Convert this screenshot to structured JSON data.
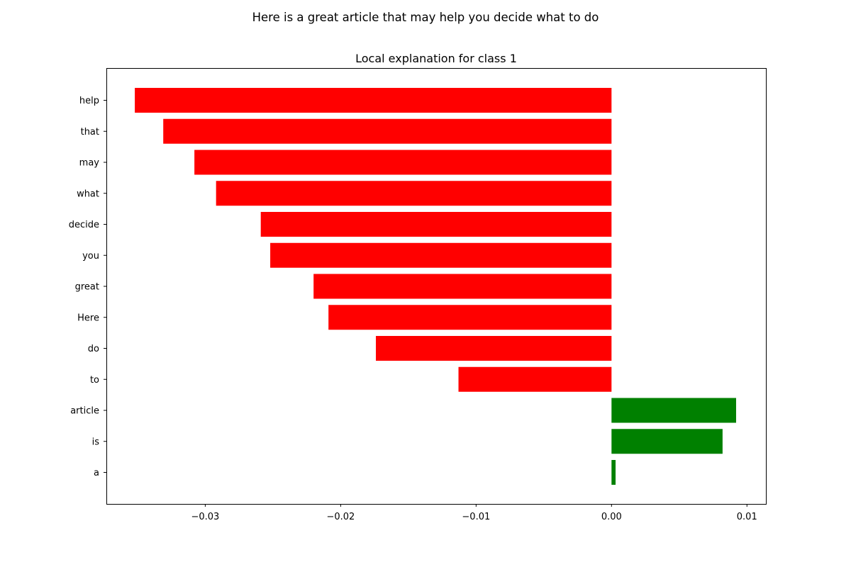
{
  "figure": {
    "suptitle": "Here is a great article that may help you decide what to do"
  },
  "chart_data": {
    "type": "bar",
    "orientation": "horizontal",
    "title": "Local explanation for class 1",
    "xlabel": "",
    "ylabel": "",
    "categories": [
      "help",
      "that",
      "may",
      "what",
      "decide",
      "you",
      "great",
      "Here",
      "do",
      "to",
      "article",
      "is",
      "a"
    ],
    "values": [
      -0.0352,
      -0.0331,
      -0.0308,
      -0.0292,
      -0.0259,
      -0.0252,
      -0.022,
      -0.0209,
      -0.0174,
      -0.0113,
      0.0092,
      0.0082,
      0.0003
    ],
    "xlim": [
      -0.0373,
      0.0114
    ],
    "xticks": [
      -0.03,
      -0.02,
      -0.01,
      0.0,
      0.01
    ],
    "xtick_labels": [
      "−0.03",
      "−0.02",
      "−0.01",
      "0.00",
      "0.01"
    ],
    "colors": {
      "positive": "#008000",
      "negative": "#ff0000"
    },
    "grid": false,
    "legend": "none"
  }
}
